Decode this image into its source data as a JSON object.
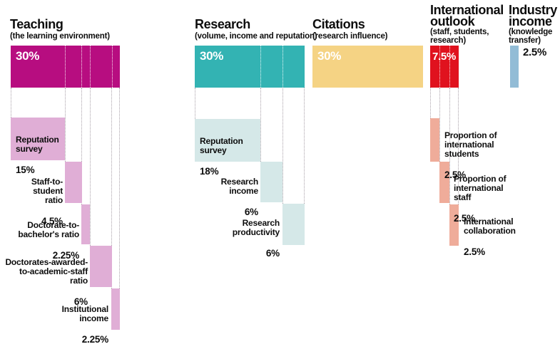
{
  "chart_data": {
    "type": "bar",
    "unit": "%",
    "description_scope": "weights of ranking pillars and their sub-indicators",
    "pillars": [
      {
        "name": "Teaching",
        "title": "Teaching",
        "subtitle": "(the learning environment)",
        "weight": 30,
        "weight_label": "30%",
        "color": "#b70d80",
        "light": "#e0aed6",
        "indicators": [
          {
            "name": "Reputation survey",
            "label": "Reputation\nsurvey",
            "weight": 15,
            "pct": "15%"
          },
          {
            "name": "Staff-to-student ratio",
            "label": "Staff-to-student\nratio",
            "weight": 4.5,
            "pct": "4.5%"
          },
          {
            "name": "Doctorate-to-bachelor's ratio",
            "label": "Doctorate-to-\nbachelor's ratio",
            "weight": 2.25,
            "pct": "2.25%"
          },
          {
            "name": "Doctorates-awarded-to-academic-staff ratio",
            "label": "Doctorates-awarded-\nto-academic-staff\nratio",
            "weight": 6,
            "pct": "6%"
          },
          {
            "name": "Institutional income",
            "label": "Institutional\nincome",
            "weight": 2.25,
            "pct": "2.25%"
          }
        ]
      },
      {
        "name": "Research",
        "title": "Research",
        "subtitle": "(volume, income and reputation)",
        "weight": 30,
        "weight_label": "30%",
        "color": "#33b3b3",
        "light": "#d5e8e8",
        "indicators": [
          {
            "name": "Reputation survey",
            "label": "Reputation\nsurvey",
            "weight": 18,
            "pct": "18%"
          },
          {
            "name": "Research income",
            "label": "Research\nincome",
            "weight": 6,
            "pct": "6%"
          },
          {
            "name": "Research productivity",
            "label": "Research\nproductivity",
            "weight": 6,
            "pct": "6%"
          }
        ]
      },
      {
        "name": "Citations",
        "title": "Citations",
        "subtitle": "(research influence)",
        "weight": 30,
        "weight_label": "30%",
        "color": "#f5d384",
        "indicators": []
      },
      {
        "name": "International outlook",
        "title": "International\noutlook",
        "subtitle": "(staff, students,\nresearch)",
        "weight": 7.5,
        "weight_label": "7.5%",
        "color": "#e0121e",
        "light": "#efac9a",
        "indicators": [
          {
            "name": "Proportion of international students",
            "label": "Proportion of\ninternational\nstudents",
            "weight": 2.5,
            "pct": "2.5%"
          },
          {
            "name": "Proportion of international staff",
            "label": "Proportion of\ninternational\nstaff",
            "weight": 2.5,
            "pct": "2.5%"
          },
          {
            "name": "International collaboration",
            "label": "International\ncollaboration",
            "weight": 2.5,
            "pct": "2.5%"
          }
        ]
      },
      {
        "name": "Industry income",
        "title": "Industry\nincome",
        "subtitle": "(knowledge\ntransfer)",
        "weight": 2.5,
        "weight_label": "2.5%",
        "color": "#92bcd6",
        "indicators": []
      }
    ]
  }
}
